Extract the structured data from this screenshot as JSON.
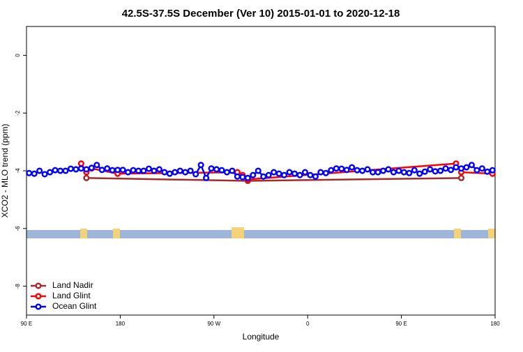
{
  "chart_data": {
    "type": "line",
    "title": "42.5S-37.5S December (Ver 10)   2015-01-01 to 2020-12-18",
    "x_label": "Longitude",
    "y_label": "XCO2 - MLO trend (ppm)",
    "xlim": [
      90,
      540
    ],
    "xticks": [
      {
        "value": 90,
        "label": "90 E"
      },
      180,
      {
        "value": 270,
        "label": "90 W"
      },
      {
        "value": 360,
        "label": "0"
      },
      {
        "value": 450,
        "label": "90 E"
      },
      {
        "value": 540,
        "label": "180"
      }
    ],
    "ylim": [
      -9,
      1
    ],
    "yticks": [
      0,
      -2,
      -4,
      -6,
      -8
    ],
    "legend": "bottom-left",
    "series": [
      {
        "name": "Land Nadir",
        "color": "#a52a2a",
        "x": [
          147.5,
          302.5,
          507.5
        ],
        "values": [
          -4.25,
          -4.35,
          -4.25
        ]
      },
      {
        "name": "Land Glint",
        "color": "#ff0000",
        "x": [
          142.5,
          147.5,
          152.5,
          177.5,
          292.5,
          297.5,
          302.5,
          502.5,
          507.5,
          537.5
        ],
        "values": [
          -3.75,
          -4.05,
          -3.92,
          -4.1,
          -4.05,
          -4.15,
          -4.3,
          -3.75,
          -4.05,
          -4.1
        ]
      },
      {
        "name": "Ocean Glint",
        "color": "#0000ff",
        "x": [
          92.5,
          97.5,
          102.5,
          107.5,
          112.5,
          117.5,
          122.5,
          127.5,
          132.5,
          137.5,
          142.5,
          147.5,
          152.5,
          157.5,
          162.5,
          167.5,
          172.5,
          177.5,
          182.5,
          187.5,
          192.5,
          197.5,
          202.5,
          207.5,
          212.5,
          217.5,
          222.5,
          227.5,
          232.5,
          237.5,
          242.5,
          247.5,
          252.5,
          257.5,
          262.5,
          267.5,
          272.5,
          277.5,
          282.5,
          287.5,
          292.5,
          297.5,
          302.5,
          307.5,
          312.5,
          317.5,
          322.5,
          327.5,
          332.5,
          337.5,
          342.5,
          347.5,
          352.5,
          357.5,
          362.5,
          367.5,
          372.5,
          377.5,
          382.5,
          387.5,
          392.5,
          397.5,
          402.5,
          407.5,
          412.5,
          417.5,
          422.5,
          427.5,
          432.5,
          437.5,
          442.5,
          447.5,
          452.5,
          457.5,
          462.5,
          467.5,
          472.5,
          477.5,
          482.5,
          487.5,
          492.5,
          497.5,
          502.5,
          507.5,
          512.5,
          517.5,
          522.5,
          527.5,
          532.5,
          537.5
        ],
        "values": [
          -4.08,
          -4.1,
          -4.0,
          -4.12,
          -4.05,
          -3.98,
          -4.0,
          -4.0,
          -3.93,
          -3.95,
          -3.92,
          -3.95,
          -3.9,
          -3.8,
          -3.97,
          -3.92,
          -3.98,
          -3.97,
          -3.97,
          -4.05,
          -3.98,
          -4.0,
          -4.0,
          -3.93,
          -4.0,
          -3.95,
          -4.05,
          -4.1,
          -4.05,
          -4.0,
          -4.05,
          -4.0,
          -4.12,
          -3.8,
          -4.25,
          -3.92,
          -3.95,
          -3.98,
          -4.05,
          -4.0,
          -4.2,
          -4.22,
          -4.25,
          -4.15,
          -4.0,
          -4.2,
          -4.15,
          -4.05,
          -4.1,
          -4.15,
          -4.05,
          -4.1,
          -4.15,
          -4.05,
          -4.15,
          -4.2,
          -4.05,
          -4.08,
          -3.98,
          -3.92,
          -3.93,
          -3.97,
          -3.88,
          -3.98,
          -4.0,
          -3.95,
          -4.05,
          -4.05,
          -4.0,
          -3.95,
          -4.05,
          -4.0,
          -4.05,
          -4.08,
          -3.98,
          -4.1,
          -4.03,
          -3.95,
          -4.02,
          -4.0,
          -3.92,
          -3.97,
          -3.88,
          -3.92,
          -3.88,
          -3.8,
          -3.98,
          -3.92,
          -4.03,
          -3.98
        ]
      }
    ]
  }
}
